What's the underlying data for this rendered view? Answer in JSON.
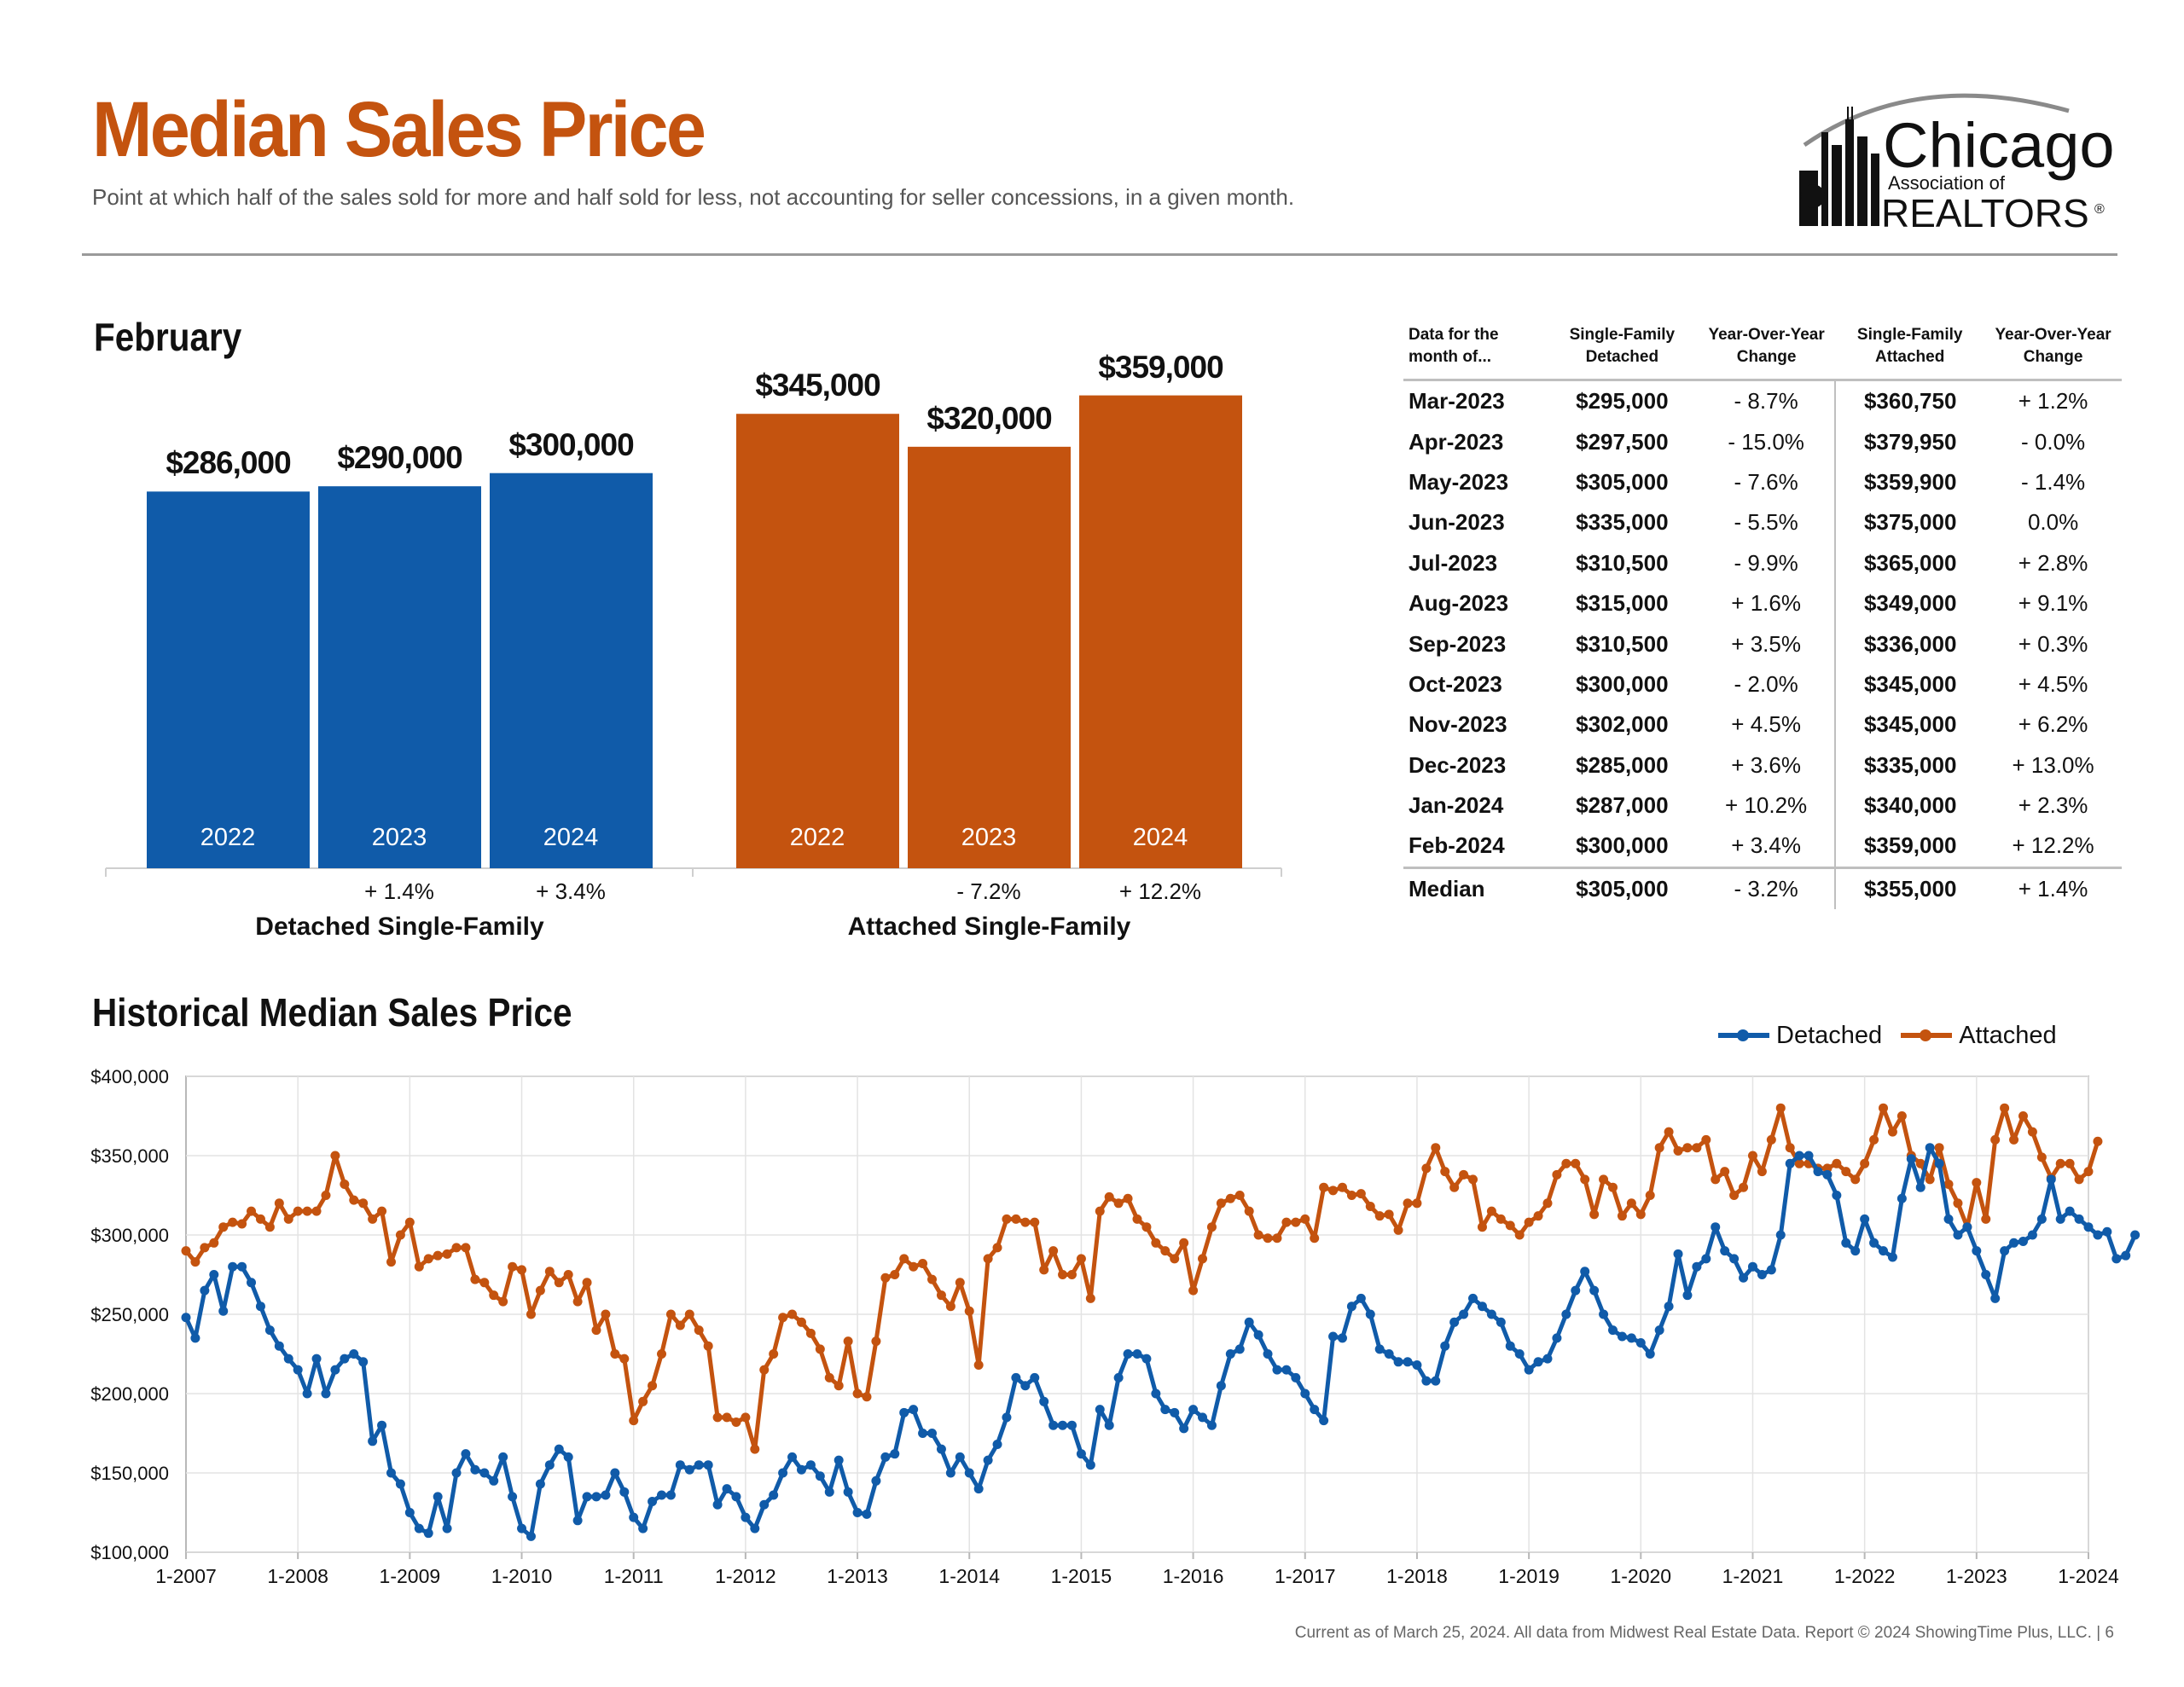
{
  "header": {
    "title": "Median Sales Price",
    "subtitle": "Point at which half of the sales sold for more and half sold for less, not accounting for seller concessions, in a given month.",
    "logo_line1": "Chicago",
    "logo_line2": "Association of",
    "logo_line3": "REALTORS",
    "logo_reg": "®"
  },
  "colors": {
    "detached": "#105ba9",
    "attached": "#c4530f",
    "title": "#c4530f"
  },
  "month_section": {
    "title": "February"
  },
  "history_section": {
    "title": "Historical Median Sales Price"
  },
  "footer": "Current as of March 25, 2024.  All data from Midwest Real Estate Data. Report © 2024 ShowingTime Plus, LLC.  |  6",
  "chart_data": [
    {
      "type": "bar",
      "groups": [
        {
          "name": "Detached Single-Family",
          "categories": [
            "2022",
            "2023",
            "2024"
          ],
          "values": [
            286000,
            290000,
            300000
          ],
          "value_labels": [
            "$286,000",
            "$290,000",
            "$300,000"
          ],
          "changes": [
            "",
            "+ 1.4%",
            "+ 3.4%"
          ]
        },
        {
          "name": "Attached Single-Family",
          "categories": [
            "2022",
            "2023",
            "2024"
          ],
          "values": [
            345000,
            320000,
            359000
          ],
          "value_labels": [
            "$345,000",
            "$320,000",
            "$359,000"
          ],
          "changes": [
            "",
            "- 7.2%",
            "+ 12.2%"
          ]
        }
      ]
    },
    {
      "type": "table",
      "columns": [
        "Data for the month of...",
        "Single-Family Detached",
        "Year-Over-Year Change",
        "Single-Family Attached",
        "Year-Over-Year Change"
      ],
      "rows": [
        [
          "Mar-2023",
          "$295,000",
          "- 8.7%",
          "$360,750",
          "+ 1.2%"
        ],
        [
          "Apr-2023",
          "$297,500",
          "- 15.0%",
          "$379,950",
          "- 0.0%"
        ],
        [
          "May-2023",
          "$305,000",
          "- 7.6%",
          "$359,900",
          "- 1.4%"
        ],
        [
          "Jun-2023",
          "$335,000",
          "- 5.5%",
          "$375,000",
          "0.0%"
        ],
        [
          "Jul-2023",
          "$310,500",
          "- 9.9%",
          "$365,000",
          "+ 2.8%"
        ],
        [
          "Aug-2023",
          "$315,000",
          "+ 1.6%",
          "$349,000",
          "+ 9.1%"
        ],
        [
          "Sep-2023",
          "$310,500",
          "+ 3.5%",
          "$336,000",
          "+ 0.3%"
        ],
        [
          "Oct-2023",
          "$300,000",
          "- 2.0%",
          "$345,000",
          "+ 4.5%"
        ],
        [
          "Nov-2023",
          "$302,000",
          "+ 4.5%",
          "$345,000",
          "+ 6.2%"
        ],
        [
          "Dec-2023",
          "$285,000",
          "+ 3.6%",
          "$335,000",
          "+ 13.0%"
        ],
        [
          "Jan-2024",
          "$287,000",
          "+ 10.2%",
          "$340,000",
          "+ 2.3%"
        ],
        [
          "Feb-2024",
          "$300,000",
          "+ 3.4%",
          "$359,000",
          "+ 12.2%"
        ]
      ],
      "summary_row": [
        "Median",
        "$305,000",
        "- 3.2%",
        "$355,000",
        "+ 1.4%"
      ]
    },
    {
      "type": "line",
      "x_start": "1-2007",
      "x_tick_labels": [
        "1-2007",
        "1-2008",
        "1-2009",
        "1-2010",
        "1-2011",
        "1-2012",
        "1-2013",
        "1-2014",
        "1-2015",
        "1-2016",
        "1-2017",
        "1-2018",
        "1-2019",
        "1-2020",
        "1-2021",
        "1-2022",
        "1-2023",
        "1-2024"
      ],
      "y_tick_labels": [
        "$100,000",
        "$150,000",
        "$200,000",
        "$250,000",
        "$300,000",
        "$350,000",
        "$400,000"
      ],
      "ylim": [
        100000,
        400000
      ],
      "grid": true,
      "legend_position": "top-right",
      "series": [
        {
          "name": "Detached",
          "values": [
            248000,
            235000,
            265000,
            275000,
            252000,
            280000,
            280000,
            270000,
            255000,
            240000,
            230000,
            222000,
            215000,
            200000,
            222000,
            200000,
            215000,
            222000,
            225000,
            220000,
            170000,
            180000,
            150000,
            143000,
            125000,
            115000,
            112000,
            135000,
            115000,
            150000,
            162000,
            152000,
            150000,
            145000,
            160000,
            135000,
            115000,
            110000,
            143000,
            155000,
            165000,
            160000,
            120000,
            135000,
            135000,
            136000,
            150000,
            138000,
            122000,
            115000,
            132000,
            136000,
            136000,
            155000,
            152000,
            155000,
            155000,
            130000,
            140000,
            135000,
            122000,
            115000,
            130000,
            136000,
            150000,
            160000,
            152000,
            155000,
            148000,
            138000,
            158000,
            138000,
            125000,
            124000,
            145000,
            160000,
            162000,
            188000,
            190000,
            175000,
            175000,
            165000,
            150000,
            160000,
            150000,
            140000,
            158000,
            168000,
            185000,
            210000,
            205000,
            210000,
            195000,
            180000,
            180000,
            180000,
            162000,
            155000,
            190000,
            180000,
            210000,
            225000,
            225000,
            222000,
            200000,
            190000,
            188000,
            178000,
            190000,
            185000,
            180000,
            205000,
            225000,
            228000,
            245000,
            237000,
            225000,
            215000,
            215000,
            210000,
            200000,
            190000,
            183000,
            236000,
            235000,
            255000,
            260000,
            250000,
            228000,
            225000,
            220000,
            220000,
            218000,
            208000,
            208000,
            230000,
            245000,
            250000,
            260000,
            255000,
            250000,
            245000,
            230000,
            225000,
            215000,
            220000,
            222000,
            235000,
            250000,
            265000,
            277000,
            265000,
            250000,
            240000,
            236000,
            235000,
            232000,
            225000,
            240000,
            255000,
            288000,
            262000,
            280000,
            285000,
            305000,
            290000,
            285000,
            273000,
            280000,
            275000,
            278000,
            300000,
            345000,
            350000,
            350000,
            340000,
            338000,
            325000,
            295000,
            290000,
            310000,
            295000,
            290000,
            286000,
            323000,
            348000,
            330000,
            355000,
            345000,
            310000,
            300000,
            305000,
            290000,
            275000,
            260000,
            290000,
            295000,
            296000,
            300000,
            310000,
            335000,
            310000,
            315000,
            310000,
            305000,
            300000,
            302000,
            285000,
            287000,
            300000
          ]
        },
        {
          "name": "Attached",
          "values": [
            290000,
            283000,
            292000,
            295000,
            305000,
            308000,
            307000,
            315000,
            310000,
            305000,
            320000,
            310000,
            315000,
            315000,
            315000,
            325000,
            350000,
            332000,
            322000,
            320000,
            310000,
            315000,
            283000,
            300000,
            308000,
            280000,
            285000,
            287000,
            288000,
            292000,
            292000,
            272000,
            270000,
            262000,
            258000,
            280000,
            278000,
            250000,
            265000,
            277000,
            270000,
            275000,
            258000,
            270000,
            240000,
            250000,
            225000,
            222000,
            183000,
            195000,
            205000,
            225000,
            250000,
            243000,
            250000,
            240000,
            230000,
            185000,
            185000,
            182000,
            185000,
            165000,
            215000,
            225000,
            248000,
            250000,
            245000,
            238000,
            228000,
            210000,
            205000,
            233000,
            200000,
            198000,
            233000,
            273000,
            275000,
            285000,
            280000,
            282000,
            272000,
            262000,
            255000,
            270000,
            252000,
            218000,
            285000,
            292000,
            310000,
            310000,
            308000,
            308000,
            278000,
            290000,
            275000,
            275000,
            285000,
            260000,
            315000,
            324000,
            320000,
            323000,
            310000,
            305000,
            295000,
            290000,
            285000,
            295000,
            265000,
            285000,
            305000,
            320000,
            323000,
            325000,
            315000,
            300000,
            298000,
            298000,
            308000,
            308000,
            310000,
            298000,
            330000,
            328000,
            330000,
            325000,
            326000,
            318000,
            312000,
            313000,
            303000,
            320000,
            320000,
            342000,
            355000,
            340000,
            330000,
            338000,
            335000,
            305000,
            315000,
            310000,
            306000,
            300000,
            308000,
            312000,
            320000,
            338000,
            345000,
            345000,
            335000,
            313000,
            335000,
            330000,
            312000,
            320000,
            313000,
            325000,
            355000,
            365000,
            353000,
            355000,
            355000,
            360000,
            335000,
            340000,
            325000,
            330000,
            350000,
            340000,
            360000,
            380000,
            355000,
            345000,
            345000,
            342000,
            342000,
            345000,
            340000,
            335000,
            345000,
            360000,
            380000,
            365000,
            375000,
            350000,
            345000,
            335000,
            355000,
            332000,
            320000,
            305000,
            333000,
            310000,
            360000,
            380000,
            360000,
            375000,
            365000,
            349000,
            336000,
            345000,
            345000,
            335000,
            340000,
            359000
          ]
        }
      ]
    }
  ]
}
